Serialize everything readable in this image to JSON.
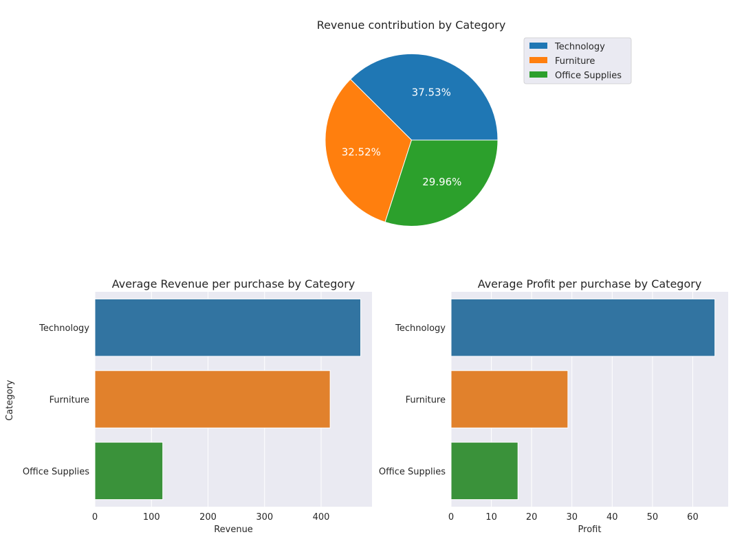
{
  "colors": {
    "Technology": "#1f77b4",
    "Furniture": "#ff7f0e",
    "Office Supplies": "#2ca02c",
    "bar_Technology": "#3274a1",
    "bar_Furniture": "#e1812c",
    "bar_Office Supplies": "#3a923a",
    "axes_bg": "#eaeaf2",
    "grid": "#ffffff",
    "text": "#262626"
  },
  "chart_data": [
    {
      "type": "pie",
      "title": "Revenue contribution by Category",
      "labels": [
        "Technology",
        "Furniture",
        "Office Supplies"
      ],
      "values": [
        37.53,
        32.52,
        29.96
      ],
      "value_labels": [
        "37.53%",
        "32.52%",
        "29.96%"
      ],
      "legend": [
        "Technology",
        "Furniture",
        "Office Supplies"
      ],
      "legend_position": "upper-right"
    },
    {
      "type": "bar",
      "orientation": "horizontal",
      "title": "Average Revenue per purchase by Category",
      "categories": [
        "Technology",
        "Furniture",
        "Office Supplies"
      ],
      "values": [
        470,
        416,
        120
      ],
      "xlabel": "Revenue",
      "ylabel": "Category",
      "xlim": [
        0,
        490
      ],
      "xticks": [
        "0",
        "100",
        "200",
        "300",
        "400"
      ],
      "grid": true
    },
    {
      "type": "bar",
      "orientation": "horizontal",
      "title": "Average Profit per purchase by Category",
      "categories": [
        "Technology",
        "Furniture",
        "Office Supplies"
      ],
      "values": [
        65.5,
        29,
        16.6
      ],
      "xlabel": "Profit",
      "ylabel": "",
      "xlim": [
        0,
        68.8
      ],
      "xticks": [
        "0",
        "10",
        "20",
        "30",
        "40",
        "50",
        "60"
      ],
      "grid": true
    }
  ]
}
